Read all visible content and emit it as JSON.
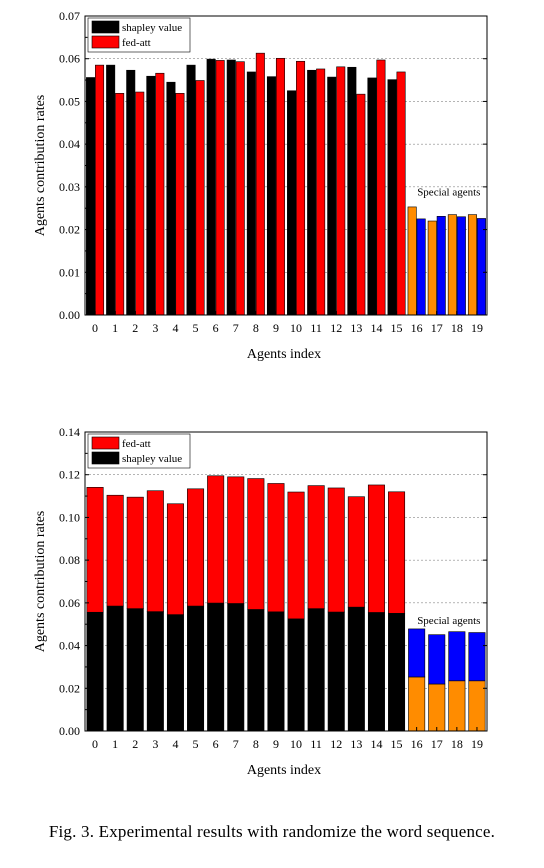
{
  "caption": "Fig. 3.  Experimental results with randomize the word sequence.",
  "colors": {
    "shapley": "#000000",
    "fed_att": "#ff0000",
    "special_shapley": "#ff8c00",
    "special_fed_att": "#0000ff"
  },
  "chart_data": [
    {
      "type": "bar",
      "mode": "grouped",
      "xlabel": "Agents index",
      "ylabel": "Agents contribution rates",
      "ylim": [
        0,
        0.07
      ],
      "yticks": [
        "0.00",
        "0.01",
        "0.02",
        "0.03",
        "0.04",
        "0.05",
        "0.06",
        "0.07"
      ],
      "categories": [
        "0",
        "1",
        "2",
        "3",
        "4",
        "5",
        "6",
        "7",
        "8",
        "9",
        "10",
        "11",
        "12",
        "13",
        "14",
        "15",
        "16",
        "17",
        "18",
        "19"
      ],
      "grid": "horizontal dashed",
      "legend_position": "top-left",
      "series": [
        {
          "name": "shapley value",
          "values": [
            0.0556,
            0.0585,
            0.0573,
            0.0559,
            0.0545,
            0.0585,
            0.0599,
            0.0597,
            0.0569,
            0.0558,
            0.0525,
            0.0573,
            0.0557,
            0.058,
            0.0555,
            0.0551,
            0.0253,
            0.022,
            0.0235,
            0.0235
          ]
        },
        {
          "name": "fed-att",
          "values": [
            0.0585,
            0.0519,
            0.0522,
            0.0566,
            0.0519,
            0.0549,
            0.0596,
            0.0593,
            0.0613,
            0.0601,
            0.0594,
            0.0576,
            0.0581,
            0.0517,
            0.0597,
            0.0569,
            0.0225,
            0.0231,
            0.023,
            0.0226
          ]
        }
      ],
      "annotation": "Special agents"
    },
    {
      "type": "bar",
      "mode": "stacked",
      "xlabel": "Agents index",
      "ylabel": "Agents contribution rates",
      "ylim": [
        0,
        0.14
      ],
      "yticks": [
        "0.00",
        "0.02",
        "0.04",
        "0.06",
        "0.08",
        "0.10",
        "0.12",
        "0.14"
      ],
      "categories": [
        "0",
        "1",
        "2",
        "3",
        "4",
        "5",
        "6",
        "7",
        "8",
        "9",
        "10",
        "11",
        "12",
        "13",
        "14",
        "15",
        "16",
        "17",
        "18",
        "19"
      ],
      "grid": "horizontal dashed",
      "legend_position": "top-left",
      "series": [
        {
          "name": "fed-att",
          "values": [
            0.0585,
            0.0519,
            0.0522,
            0.0566,
            0.0519,
            0.0549,
            0.0596,
            0.0593,
            0.0613,
            0.0601,
            0.0594,
            0.0576,
            0.0581,
            0.0517,
            0.0597,
            0.0569,
            0.0225,
            0.0231,
            0.023,
            0.0226
          ]
        },
        {
          "name": "shapley value",
          "values": [
            0.0556,
            0.0585,
            0.0573,
            0.0559,
            0.0545,
            0.0585,
            0.0599,
            0.0597,
            0.0569,
            0.0558,
            0.0525,
            0.0573,
            0.0557,
            0.058,
            0.0555,
            0.0551,
            0.0253,
            0.022,
            0.0235,
            0.0235
          ]
        }
      ],
      "annotation": "Special agents"
    }
  ]
}
